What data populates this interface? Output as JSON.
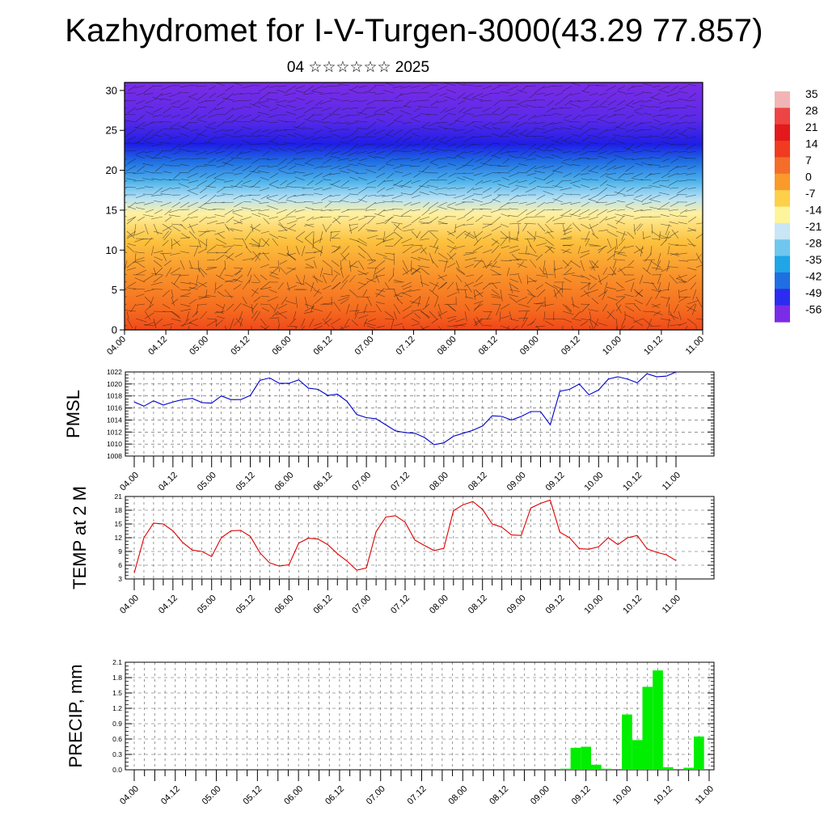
{
  "page": {
    "title": "Kazhydromet for I-V-Turgen-3000(43.29 77.857)",
    "subtitle": "04 ☆☆☆☆☆☆ 2025"
  },
  "chart_data": [
    {
      "id": "cross_section",
      "type": "heatmap",
      "title": "",
      "xlabel": "",
      "ylabel": "",
      "x_ticks": [
        "04.00",
        "04.12",
        "05.00",
        "05.12",
        "06.00",
        "06.12",
        "07.00",
        "07.12",
        "08.00",
        "08.12",
        "09.00",
        "09.12",
        "10.00",
        "10.12",
        "11.00"
      ],
      "ylim": [
        0,
        31
      ],
      "y_ticks": [
        0,
        5,
        10,
        15,
        20,
        25,
        30
      ],
      "wind_barbs": true,
      "colorbar": {
        "labels": [
          "35",
          "28",
          "21",
          "14",
          "7",
          "0",
          "-7",
          "-14",
          "-21",
          "-28",
          "-35",
          "-42",
          "-49",
          "-56"
        ],
        "colors": [
          "#f2b5b5",
          "#ee4444",
          "#e31a1c",
          "#f03b20",
          "#f46d2a",
          "#f99a2a",
          "#fdd049",
          "#fef59a",
          "#c8e6f5",
          "#6fc7ef",
          "#1ea6e6",
          "#1f6fe3",
          "#2c2cf0",
          "#7b2ce6"
        ]
      },
      "temperature_levels_at_height": [
        {
          "z": 0,
          "t": 20
        },
        {
          "z": 5,
          "t": 8
        },
        {
          "z": 10,
          "t": 0
        },
        {
          "z": 15,
          "t": -14
        },
        {
          "z": 20,
          "t": -42
        },
        {
          "z": 23,
          "t": -56
        },
        {
          "z": 30,
          "t": -56
        }
      ]
    },
    {
      "id": "pmsl",
      "type": "line",
      "ylabel": "PMSL",
      "ylim": [
        1008,
        1022
      ],
      "y_ticks": [
        1008,
        1010,
        1012,
        1014,
        1016,
        1018,
        1020,
        1022
      ],
      "x_ticks": [
        "04.00",
        "04.12",
        "05.00",
        "05.12",
        "06.00",
        "06.12",
        "07.00",
        "07.12",
        "08.00",
        "08.12",
        "09.00",
        "09.12",
        "10.00",
        "10.12",
        "11.00"
      ],
      "series": [
        {
          "color": "#0000cc",
          "values": [
            1017.0,
            1016.3,
            1017.2,
            1016.5,
            1017.0,
            1017.4,
            1017.6,
            1016.9,
            1016.8,
            1018.0,
            1017.4,
            1017.4,
            1018.1,
            1020.6,
            1021.0,
            1020.1,
            1020.1,
            1020.7,
            1019.3,
            1019.1,
            1018.1,
            1018.3,
            1017.1,
            1014.9,
            1014.4,
            1014.2,
            1013.2,
            1012.2,
            1011.9,
            1011.8,
            1011.1,
            1009.9,
            1010.2,
            1011.3,
            1011.8,
            1012.3,
            1013.0,
            1014.7,
            1014.6,
            1014.0,
            1014.6,
            1015.4,
            1015.4,
            1013.2,
            1018.8,
            1019.1,
            1020.0,
            1018.2,
            1019.0,
            1020.8,
            1021.2,
            1020.8,
            1020.2,
            1021.7,
            1021.2,
            1021.3,
            1022.0
          ]
        }
      ]
    },
    {
      "id": "temp2m",
      "type": "line",
      "ylabel": "TEMP at 2 M",
      "ylim": [
        3,
        21
      ],
      "y_ticks": [
        3,
        6,
        9,
        12,
        15,
        18,
        21
      ],
      "x_ticks": [
        "04.00",
        "04.12",
        "05.00",
        "05.12",
        "06.00",
        "06.12",
        "07.00",
        "07.12",
        "08.00",
        "08.12",
        "09.00",
        "09.12",
        "10.00",
        "10.12",
        "11.00"
      ],
      "series": [
        {
          "color": "#dd0000",
          "values": [
            4.3,
            12.0,
            15.2,
            15.0,
            13.5,
            11.0,
            9.3,
            9.0,
            7.9,
            12.0,
            13.5,
            13.6,
            12.3,
            8.7,
            6.5,
            5.8,
            6.1,
            10.8,
            11.9,
            11.7,
            10.5,
            8.5,
            6.9,
            4.9,
            5.4,
            13.3,
            16.5,
            16.8,
            15.4,
            11.5,
            10.3,
            9.2,
            9.7,
            17.9,
            19.2,
            19.9,
            18.2,
            15.0,
            14.3,
            12.6,
            12.5,
            18.5,
            19.5,
            20.2,
            13.2,
            12.0,
            9.6,
            9.5,
            10.0,
            12.0,
            10.5,
            12.0,
            12.5,
            9.6,
            8.8,
            8.3,
            7.0
          ]
        }
      ]
    },
    {
      "id": "precip",
      "type": "bar",
      "ylabel": "PRECIP, mm",
      "ylim": [
        0,
        2.1
      ],
      "y_ticks": [
        "0.0",
        "0.3",
        "0.6",
        "0.9",
        "1.2",
        "1.5",
        "1.8",
        "2.1"
      ],
      "x_ticks": [
        "04.00",
        "04.12",
        "05.00",
        "05.12",
        "06.00",
        "06.12",
        "07.00",
        "07.12",
        "08.00",
        "08.12",
        "09.00",
        "09.12",
        "10.00",
        "10.12",
        "11.00"
      ],
      "bar_color": "#00ee00",
      "bars": [
        {
          "t": 42,
          "v": 0.02
        },
        {
          "t": 43,
          "v": 0.43
        },
        {
          "t": 44,
          "v": 0.45
        },
        {
          "t": 45,
          "v": 0.1
        },
        {
          "t": 46,
          "v": 0.02
        },
        {
          "t": 48,
          "v": 1.08
        },
        {
          "t": 49,
          "v": 0.58
        },
        {
          "t": 50,
          "v": 1.62
        },
        {
          "t": 51,
          "v": 1.94
        },
        {
          "t": 52,
          "v": 0.05
        },
        {
          "t": 54,
          "v": 0.04
        },
        {
          "t": 55,
          "v": 0.65
        }
      ]
    }
  ]
}
